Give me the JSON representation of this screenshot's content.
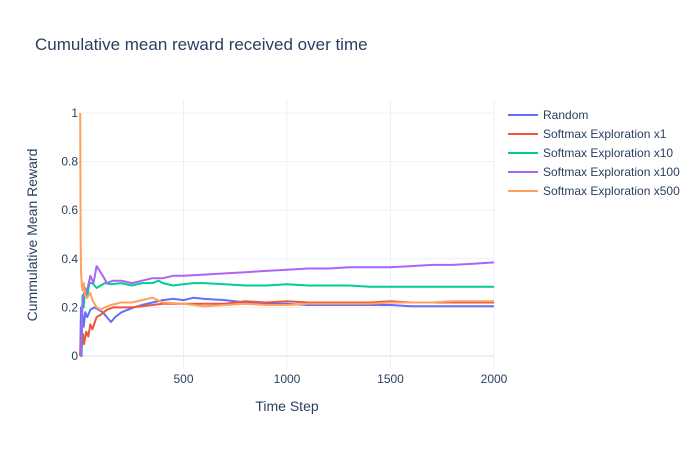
{
  "chart_data": {
    "type": "line",
    "title": "Cumulative mean reward received over time",
    "xlabel": "Time Step",
    "ylabel": "Cummulative Mean Reward",
    "xlim": [
      0,
      2000
    ],
    "ylim": [
      0,
      1
    ],
    "x_ticks": [
      500,
      1000,
      1500,
      2000
    ],
    "x_tick_labels": [
      "500",
      "1000",
      "1500",
      "2000"
    ],
    "y_ticks": [
      0,
      0.2,
      0.4,
      0.6,
      0.8,
      1
    ],
    "y_tick_labels": [
      "0",
      "0.2",
      "0.4",
      "0.6",
      "0.8",
      "1"
    ],
    "grid": true,
    "legend_position": "top-right",
    "series": [
      {
        "name": "Random",
        "color": "#636efa",
        "points": [
          [
            1,
            0.0
          ],
          [
            5,
            0.2
          ],
          [
            8,
            0.12
          ],
          [
            12,
            0.17
          ],
          [
            18,
            0.12
          ],
          [
            25,
            0.18
          ],
          [
            35,
            0.16
          ],
          [
            50,
            0.19
          ],
          [
            70,
            0.2
          ],
          [
            90,
            0.19
          ],
          [
            110,
            0.18
          ],
          [
            130,
            0.16
          ],
          [
            150,
            0.14
          ],
          [
            170,
            0.16
          ],
          [
            200,
            0.18
          ],
          [
            230,
            0.19
          ],
          [
            260,
            0.2
          ],
          [
            300,
            0.21
          ],
          [
            350,
            0.22
          ],
          [
            400,
            0.23
          ],
          [
            450,
            0.235
          ],
          [
            500,
            0.23
          ],
          [
            550,
            0.24
          ],
          [
            600,
            0.235
          ],
          [
            700,
            0.23
          ],
          [
            800,
            0.22
          ],
          [
            900,
            0.215
          ],
          [
            1000,
            0.215
          ],
          [
            1100,
            0.21
          ],
          [
            1200,
            0.21
          ],
          [
            1300,
            0.21
          ],
          [
            1400,
            0.21
          ],
          [
            1500,
            0.21
          ],
          [
            1600,
            0.205
          ],
          [
            1700,
            0.205
          ],
          [
            1800,
            0.205
          ],
          [
            1900,
            0.205
          ],
          [
            2000,
            0.205
          ]
        ]
      },
      {
        "name": "Softmax Exploration x1",
        "color": "#ef553b",
        "points": [
          [
            1,
            0.0
          ],
          [
            5,
            0.07
          ],
          [
            10,
            0.04
          ],
          [
            15,
            0.09
          ],
          [
            20,
            0.05
          ],
          [
            30,
            0.1
          ],
          [
            40,
            0.08
          ],
          [
            50,
            0.13
          ],
          [
            60,
            0.11
          ],
          [
            80,
            0.16
          ],
          [
            100,
            0.17
          ],
          [
            130,
            0.19
          ],
          [
            160,
            0.2
          ],
          [
            200,
            0.2
          ],
          [
            250,
            0.2
          ],
          [
            300,
            0.205
          ],
          [
            350,
            0.21
          ],
          [
            400,
            0.215
          ],
          [
            500,
            0.215
          ],
          [
            600,
            0.215
          ],
          [
            700,
            0.215
          ],
          [
            800,
            0.225
          ],
          [
            900,
            0.22
          ],
          [
            1000,
            0.225
          ],
          [
            1100,
            0.22
          ],
          [
            1200,
            0.22
          ],
          [
            1300,
            0.22
          ],
          [
            1400,
            0.22
          ],
          [
            1500,
            0.225
          ],
          [
            1600,
            0.22
          ],
          [
            1700,
            0.22
          ],
          [
            1800,
            0.22
          ],
          [
            1900,
            0.22
          ],
          [
            2000,
            0.22
          ]
        ]
      },
      {
        "name": "Softmax Exploration x10",
        "color": "#00cc96",
        "points": [
          [
            1,
            0.0
          ],
          [
            8,
            0.0
          ],
          [
            12,
            0.25
          ],
          [
            18,
            0.2
          ],
          [
            25,
            0.28
          ],
          [
            35,
            0.24
          ],
          [
            45,
            0.3
          ],
          [
            60,
            0.3
          ],
          [
            80,
            0.28
          ],
          [
            100,
            0.29
          ],
          [
            120,
            0.3
          ],
          [
            150,
            0.295
          ],
          [
            200,
            0.3
          ],
          [
            250,
            0.29
          ],
          [
            300,
            0.3
          ],
          [
            350,
            0.3
          ],
          [
            380,
            0.31
          ],
          [
            400,
            0.3
          ],
          [
            450,
            0.29
          ],
          [
            500,
            0.295
          ],
          [
            550,
            0.3
          ],
          [
            600,
            0.3
          ],
          [
            700,
            0.295
          ],
          [
            800,
            0.29
          ],
          [
            900,
            0.29
          ],
          [
            1000,
            0.295
          ],
          [
            1100,
            0.29
          ],
          [
            1200,
            0.29
          ],
          [
            1300,
            0.29
          ],
          [
            1400,
            0.285
          ],
          [
            1500,
            0.285
          ],
          [
            1600,
            0.285
          ],
          [
            1700,
            0.285
          ],
          [
            1800,
            0.285
          ],
          [
            1900,
            0.285
          ],
          [
            2000,
            0.285
          ]
        ]
      },
      {
        "name": "Softmax Exploration x100",
        "color": "#ab63fa",
        "points": [
          [
            1,
            0.0
          ],
          [
            5,
            0.0
          ],
          [
            10,
            0.2
          ],
          [
            20,
            0.26
          ],
          [
            35,
            0.27
          ],
          [
            50,
            0.33
          ],
          [
            65,
            0.3
          ],
          [
            80,
            0.37
          ],
          [
            95,
            0.35
          ],
          [
            110,
            0.33
          ],
          [
            130,
            0.3
          ],
          [
            160,
            0.31
          ],
          [
            200,
            0.31
          ],
          [
            250,
            0.3
          ],
          [
            300,
            0.31
          ],
          [
            350,
            0.32
          ],
          [
            400,
            0.32
          ],
          [
            450,
            0.33
          ],
          [
            500,
            0.33
          ],
          [
            600,
            0.335
          ],
          [
            700,
            0.34
          ],
          [
            800,
            0.345
          ],
          [
            900,
            0.35
          ],
          [
            1000,
            0.355
          ],
          [
            1100,
            0.36
          ],
          [
            1200,
            0.36
          ],
          [
            1300,
            0.365
          ],
          [
            1400,
            0.365
          ],
          [
            1500,
            0.365
          ],
          [
            1600,
            0.37
          ],
          [
            1700,
            0.375
          ],
          [
            1800,
            0.375
          ],
          [
            1900,
            0.38
          ],
          [
            2000,
            0.385
          ]
        ]
      },
      {
        "name": "Softmax Exploration x500",
        "color": "#ffa15a",
        "points": [
          [
            1,
            1.0
          ],
          [
            3,
            0.5
          ],
          [
            5,
            0.35
          ],
          [
            8,
            0.3
          ],
          [
            12,
            0.27
          ],
          [
            18,
            0.3
          ],
          [
            25,
            0.25
          ],
          [
            35,
            0.24
          ],
          [
            50,
            0.26
          ],
          [
            60,
            0.23
          ],
          [
            80,
            0.2
          ],
          [
            100,
            0.19
          ],
          [
            120,
            0.2
          ],
          [
            150,
            0.21
          ],
          [
            200,
            0.22
          ],
          [
            250,
            0.22
          ],
          [
            300,
            0.23
          ],
          [
            350,
            0.24
          ],
          [
            400,
            0.22
          ],
          [
            500,
            0.215
          ],
          [
            600,
            0.205
          ],
          [
            700,
            0.21
          ],
          [
            800,
            0.215
          ],
          [
            900,
            0.21
          ],
          [
            1000,
            0.21
          ],
          [
            1100,
            0.215
          ],
          [
            1200,
            0.215
          ],
          [
            1300,
            0.215
          ],
          [
            1400,
            0.215
          ],
          [
            1500,
            0.22
          ],
          [
            1600,
            0.22
          ],
          [
            1700,
            0.22
          ],
          [
            1800,
            0.225
          ],
          [
            1900,
            0.225
          ],
          [
            2000,
            0.225
          ]
        ]
      }
    ]
  }
}
